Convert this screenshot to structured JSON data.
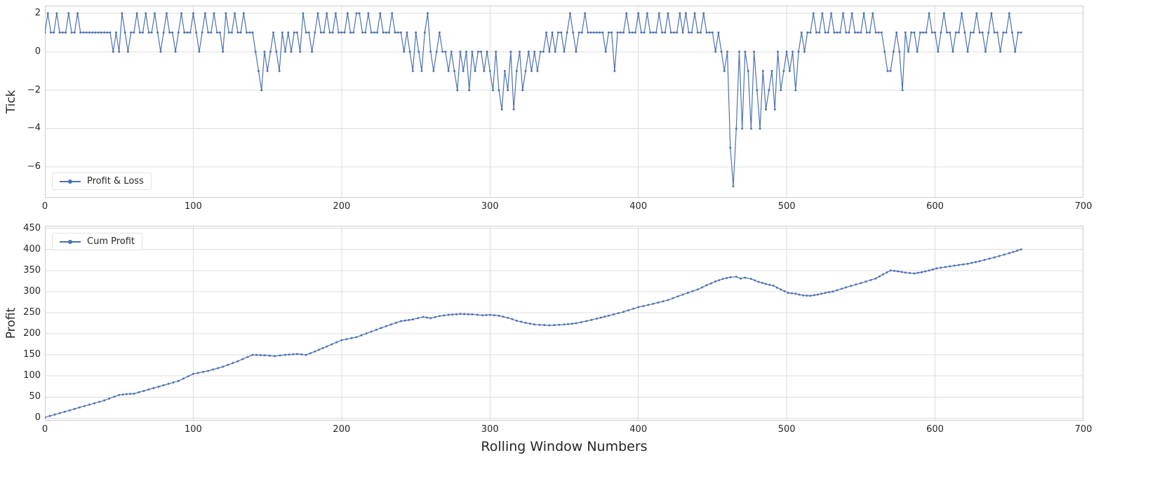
{
  "figure": {
    "background": "#ffffff",
    "line_color": "#4C72B0",
    "grid_color": "#dcdcdc",
    "frame_color": "#cccccc",
    "text_color": "#262626"
  },
  "chart_data": [
    {
      "type": "line",
      "name": "tick-pnl",
      "ylabel": "Tick",
      "legend": {
        "label": "Profit & Loss",
        "position": "lower-left"
      },
      "xlim": [
        0,
        700
      ],
      "ylim": [
        -7.6,
        2.4
      ],
      "xticks": [
        0,
        100,
        200,
        300,
        400,
        500,
        600,
        700
      ],
      "yticks": [
        2,
        0,
        -2,
        -4,
        -6
      ],
      "grid": true,
      "x_start": 0,
      "x_step": 2,
      "values": [
        1,
        2,
        1,
        1,
        2,
        1,
        1,
        1,
        2,
        1,
        1,
        2,
        1,
        1,
        1,
        1,
        1,
        1,
        1,
        1,
        1,
        1,
        1,
        0,
        1,
        0,
        2,
        1,
        0,
        1,
        1,
        2,
        1,
        1,
        2,
        1,
        1,
        2,
        1,
        0,
        1,
        2,
        1,
        1,
        0,
        1,
        2,
        1,
        1,
        1,
        2,
        1,
        0,
        1,
        2,
        1,
        1,
        2,
        1,
        1,
        0,
        2,
        1,
        1,
        2,
        1,
        1,
        2,
        1,
        1,
        1,
        0,
        -1,
        -2,
        0,
        -1,
        0,
        1,
        0,
        -1,
        1,
        0,
        1,
        0,
        1,
        1,
        0,
        2,
        1,
        1,
        0,
        1,
        2,
        1,
        1,
        2,
        1,
        1,
        2,
        1,
        1,
        1,
        2,
        1,
        1,
        2,
        2,
        1,
        1,
        2,
        1,
        1,
        1,
        2,
        1,
        1,
        1,
        2,
        1,
        1,
        1,
        0,
        1,
        0,
        -1,
        1,
        0,
        -1,
        1,
        2,
        0,
        -1,
        0,
        1,
        0,
        0,
        -1,
        0,
        -1,
        -2,
        0,
        -1,
        0,
        -2,
        0,
        -1,
        0,
        0,
        -1,
        0,
        -1,
        -2,
        0,
        -2,
        -3,
        -1,
        -2,
        0,
        -3,
        -1,
        0,
        -2,
        -1,
        0,
        -1,
        0,
        -1,
        0,
        0,
        1,
        0,
        1,
        0,
        1,
        1,
        0,
        1,
        2,
        1,
        0,
        1,
        1,
        2,
        1,
        1,
        1,
        1,
        1,
        1,
        0,
        1,
        1,
        -1,
        1,
        1,
        1,
        2,
        1,
        1,
        1,
        2,
        1,
        1,
        2,
        1,
        1,
        1,
        2,
        1,
        1,
        2,
        1,
        1,
        1,
        2,
        1,
        2,
        1,
        1,
        2,
        1,
        1,
        2,
        1,
        1,
        1,
        0,
        1,
        0,
        -1,
        0,
        -5,
        -7,
        -4,
        0,
        -4,
        0,
        -1,
        -4,
        0,
        -2,
        -4,
        -1,
        -3,
        -2,
        -1,
        -3,
        0,
        -2,
        -1,
        0,
        -1,
        0,
        -2,
        0,
        1,
        0,
        1,
        1,
        2,
        1,
        1,
        2,
        1,
        1,
        2,
        1,
        1,
        1,
        2,
        1,
        1,
        2,
        1,
        1,
        1,
        2,
        1,
        1,
        2,
        1,
        1,
        1,
        0,
        -1,
        -1,
        0,
        1,
        0,
        -2,
        1,
        0,
        1,
        1,
        0,
        1,
        1,
        1,
        2,
        1,
        1,
        0,
        1,
        2,
        1,
        1,
        0,
        1,
        1,
        2,
        1,
        0,
        1,
        1,
        2,
        1,
        1,
        0,
        1,
        2,
        1,
        1,
        0,
        1,
        1,
        2,
        1,
        0,
        1,
        1
      ]
    },
    {
      "type": "line",
      "name": "cum-profit",
      "ylabel": "Profit",
      "xlabel": "Rolling Window Numbers",
      "legend": {
        "label": "Cum Profit",
        "position": "upper-left"
      },
      "xlim": [
        0,
        700
      ],
      "ylim": [
        -6,
        456
      ],
      "xticks": [
        0,
        100,
        200,
        300,
        400,
        500,
        600,
        700
      ],
      "yticks": [
        0,
        50,
        100,
        150,
        200,
        250,
        300,
        350,
        400,
        450
      ],
      "grid": true,
      "points": [
        [
          0,
          2
        ],
        [
          10,
          12
        ],
        [
          20,
          22
        ],
        [
          30,
          32
        ],
        [
          40,
          42
        ],
        [
          50,
          55
        ],
        [
          55,
          57
        ],
        [
          60,
          58
        ],
        [
          70,
          68
        ],
        [
          80,
          78
        ],
        [
          90,
          88
        ],
        [
          100,
          105
        ],
        [
          110,
          112
        ],
        [
          120,
          122
        ],
        [
          130,
          135
        ],
        [
          140,
          150
        ],
        [
          148,
          149
        ],
        [
          155,
          147
        ],
        [
          162,
          150
        ],
        [
          170,
          152
        ],
        [
          176,
          150
        ],
        [
          182,
          158
        ],
        [
          190,
          170
        ],
        [
          200,
          185
        ],
        [
          210,
          192
        ],
        [
          220,
          205
        ],
        [
          230,
          218
        ],
        [
          240,
          230
        ],
        [
          248,
          234
        ],
        [
          255,
          240
        ],
        [
          260,
          237
        ],
        [
          266,
          242
        ],
        [
          272,
          245
        ],
        [
          280,
          247
        ],
        [
          288,
          246
        ],
        [
          295,
          244
        ],
        [
          300,
          245
        ],
        [
          306,
          243
        ],
        [
          312,
          238
        ],
        [
          318,
          231
        ],
        [
          324,
          226
        ],
        [
          330,
          222
        ],
        [
          340,
          220
        ],
        [
          350,
          222
        ],
        [
          358,
          225
        ],
        [
          365,
          230
        ],
        [
          372,
          236
        ],
        [
          380,
          243
        ],
        [
          390,
          252
        ],
        [
          400,
          263
        ],
        [
          410,
          271
        ],
        [
          420,
          280
        ],
        [
          430,
          293
        ],
        [
          440,
          305
        ],
        [
          446,
          315
        ],
        [
          452,
          324
        ],
        [
          457,
          330
        ],
        [
          462,
          334
        ],
        [
          466,
          335
        ],
        [
          469,
          331
        ],
        [
          472,
          333
        ],
        [
          476,
          330
        ],
        [
          481,
          323
        ],
        [
          486,
          318
        ],
        [
          491,
          314
        ],
        [
          496,
          305
        ],
        [
          501,
          297
        ],
        [
          506,
          295
        ],
        [
          511,
          291
        ],
        [
          516,
          290
        ],
        [
          521,
          293
        ],
        [
          526,
          297
        ],
        [
          531,
          300
        ],
        [
          540,
          310
        ],
        [
          550,
          320
        ],
        [
          560,
          331
        ],
        [
          565,
          341
        ],
        [
          570,
          350
        ],
        [
          575,
          348
        ],
        [
          580,
          345
        ],
        [
          586,
          343
        ],
        [
          591,
          346
        ],
        [
          596,
          350
        ],
        [
          601,
          355
        ],
        [
          610,
          360
        ],
        [
          616,
          363
        ],
        [
          622,
          366
        ],
        [
          630,
          372
        ],
        [
          640,
          381
        ],
        [
          650,
          391
        ],
        [
          658,
          400
        ]
      ]
    }
  ]
}
